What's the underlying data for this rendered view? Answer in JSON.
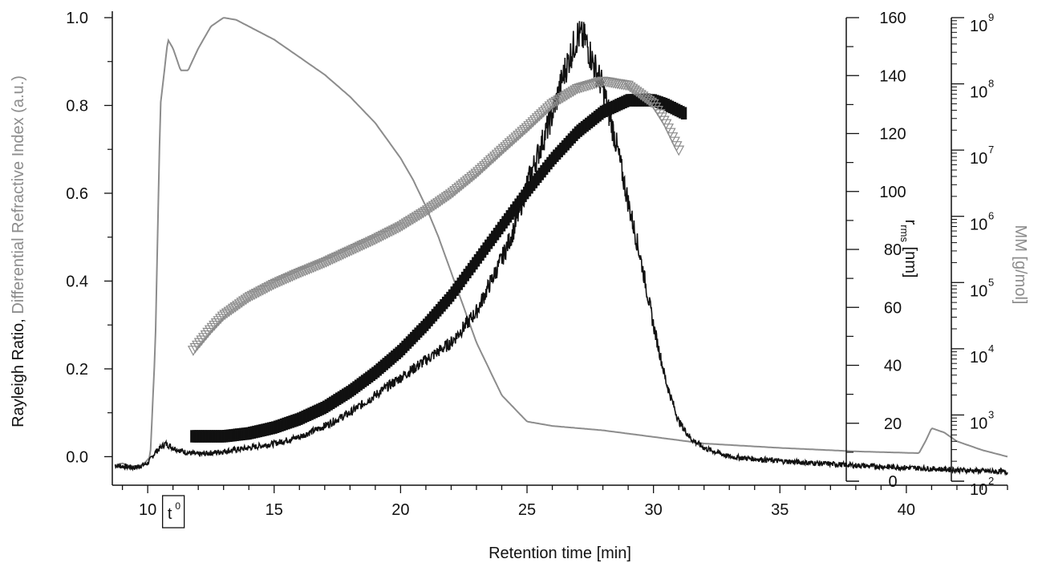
{
  "chart_data": {
    "type": "line",
    "xlabel": "Retention time [min]",
    "xlim": [
      8.6,
      44
    ],
    "x_ticks": [
      10,
      15,
      20,
      25,
      30,
      35,
      40
    ],
    "x_annotation": {
      "label": "t",
      "superscript": "0",
      "x": 11
    },
    "y_axes": [
      {
        "id": "left",
        "label_part1": "Rayleigh Ratio, ",
        "label_part2": "Differential Refractive Index (a.u.)",
        "label_part1_color": "#111111",
        "label_part2_color": "#8c8c8c",
        "ylim": [
          -0.065,
          1.0
        ],
        "ticks": [
          "0.0",
          "0.2",
          "0.4",
          "0.6",
          "0.8",
          "1.0"
        ],
        "scale": "linear"
      },
      {
        "id": "rms",
        "label_main": "r",
        "label_sub": "rms",
        "label_rest": " [nm]",
        "color": "#111111",
        "ylim": [
          0,
          160
        ],
        "ticks": [
          "0",
          "20",
          "40",
          "60",
          "80",
          "100",
          "120",
          "140",
          "160"
        ],
        "scale": "linear"
      },
      {
        "id": "mm",
        "label": "MM [g/mol]",
        "color": "#8c8c8c",
        "ylim": [
          100,
          1000000000
        ],
        "tick_base": "10",
        "tick_exponents": [
          "2",
          "3",
          "4",
          "5",
          "6",
          "7",
          "8",
          "9"
        ],
        "scale": "log"
      }
    ],
    "series": [
      {
        "id": "dri",
        "axis": "left",
        "color": "#8c8c8c",
        "style": "line",
        "x": [
          8.7,
          9.0,
          9.3,
          9.8,
          10.1,
          10.3,
          10.5,
          10.8,
          11.0,
          11.3,
          11.6,
          12.0,
          12.5,
          13.0,
          13.5,
          14.0,
          15.0,
          16.0,
          17.0,
          18.0,
          19.0,
          20.0,
          20.5,
          21.0,
          21.5,
          22.0,
          22.5,
          23.0,
          24.0,
          25.0,
          26.0,
          27.0,
          28.0,
          30.0,
          32.0,
          35.0,
          38.0,
          40.5,
          40.8,
          41.0,
          41.5,
          42.0,
          43.0,
          44.0
        ],
        "y": [
          -0.02,
          -0.015,
          -0.022,
          -0.02,
          0.0,
          0.25,
          0.8,
          0.95,
          0.93,
          0.88,
          0.88,
          0.93,
          0.98,
          1.0,
          0.995,
          0.98,
          0.95,
          0.91,
          0.87,
          0.82,
          0.76,
          0.68,
          0.63,
          0.57,
          0.5,
          0.42,
          0.34,
          0.26,
          0.14,
          0.08,
          0.07,
          0.065,
          0.06,
          0.045,
          0.03,
          0.02,
          0.012,
          0.008,
          0.04,
          0.065,
          0.055,
          0.035,
          0.015,
          0.0
        ]
      },
      {
        "id": "rayleigh",
        "axis": "left",
        "color": "#111111",
        "style": "noisy-line",
        "x": [
          8.7,
          9.5,
          10.0,
          10.3,
          10.7,
          11.0,
          11.5,
          12.0,
          13.0,
          14.0,
          15.0,
          16.0,
          17.0,
          18.0,
          19.0,
          20.0,
          21.0,
          22.0,
          23.0,
          24.0,
          24.5,
          25.0,
          25.5,
          26.0,
          26.5,
          27.0,
          27.3,
          27.6,
          28.0,
          28.5,
          29.0,
          29.5,
          30.0,
          30.5,
          31.0,
          31.5,
          32.0,
          33.0,
          35.0,
          38.0,
          40.0,
          42.0,
          44.0
        ],
        "y": [
          -0.02,
          -0.025,
          -0.015,
          0.01,
          0.03,
          0.02,
          0.01,
          0.005,
          0.012,
          0.02,
          0.03,
          0.045,
          0.07,
          0.1,
          0.14,
          0.18,
          0.22,
          0.26,
          0.33,
          0.45,
          0.52,
          0.62,
          0.7,
          0.78,
          0.88,
          0.96,
          0.95,
          0.9,
          0.84,
          0.72,
          0.58,
          0.45,
          0.3,
          0.17,
          0.08,
          0.04,
          0.02,
          0.0,
          -0.01,
          -0.02,
          -0.025,
          -0.03,
          -0.035
        ]
      },
      {
        "id": "rms_markers",
        "axis": "rms",
        "color": "#111111",
        "style": "dense-markers",
        "x": [
          11.8,
          13,
          14,
          15,
          16,
          17,
          18,
          19,
          20,
          21,
          22,
          23,
          24,
          25,
          26,
          27,
          28,
          29,
          30,
          30.5,
          31.2
        ],
        "y": [
          15.5,
          15.5,
          16.5,
          18.5,
          21.5,
          25.5,
          31,
          37.5,
          45,
          54,
          64,
          76,
          88,
          100,
          111,
          120.5,
          127.5,
          131.5,
          131.5,
          130,
          127
        ]
      },
      {
        "id": "mm_markers",
        "axis": "mm",
        "color": "#8c8c8c",
        "style": "dense-markers",
        "x": [
          11.8,
          12.5,
          13,
          14,
          15,
          16,
          17,
          18,
          19,
          20,
          21,
          22,
          23,
          24,
          25,
          26,
          27,
          28,
          29,
          30,
          30.5,
          31
        ],
        "y": [
          9500,
          20000,
          32000,
          60000,
          95000,
          140000,
          200000,
          300000,
          450000,
          700000,
          1200000,
          2200000,
          4500000,
          10000000,
          22000000,
          50000000,
          85000000,
          110000000,
          95000000,
          50000000,
          25000000,
          10000000
        ]
      }
    ]
  }
}
